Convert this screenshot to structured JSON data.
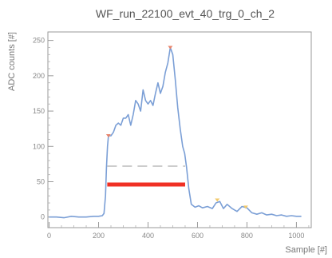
{
  "chart_data": {
    "type": "line",
    "title": "WF_run_22100_evt_40_trg_0_ch_2",
    "xlabel": "Sample [#]",
    "ylabel": "ADC counts [#]",
    "xlim": [
      -5,
      1060
    ],
    "ylim": [
      -15,
      262
    ],
    "xticks": [
      0,
      200,
      400,
      600,
      800,
      1000
    ],
    "yticks": [
      0,
      50,
      100,
      150,
      200,
      250
    ],
    "grid": false,
    "series": [
      {
        "color": "#7b9fd6",
        "x": [
          0,
          30,
          60,
          90,
          120,
          150,
          180,
          200,
          215,
          222,
          228,
          232,
          236,
          240,
          250,
          260,
          270,
          280,
          290,
          300,
          310,
          320,
          330,
          340,
          350,
          360,
          370,
          380,
          390,
          400,
          410,
          420,
          430,
          440,
          450,
          460,
          470,
          480,
          490,
          500,
          510,
          520,
          530,
          540,
          548,
          556,
          565,
          575,
          590,
          605,
          620,
          640,
          660,
          675,
          690,
          705,
          720,
          740,
          760,
          780,
          800,
          820,
          840,
          860,
          880,
          900,
          920,
          940,
          960,
          980,
          1000,
          1020
        ],
        "y": [
          0,
          0,
          -1,
          1,
          0,
          0,
          1,
          1,
          2,
          5,
          30,
          70,
          100,
          115,
          115,
          120,
          130,
          133,
          130,
          140,
          140,
          145,
          130,
          145,
          165,
          160,
          150,
          180,
          165,
          160,
          165,
          158,
          175,
          190,
          175,
          185,
          205,
          218,
          240,
          230,
          195,
          155,
          125,
          100,
          90,
          70,
          40,
          18,
          14,
          16,
          13,
          15,
          12,
          20,
          22,
          12,
          18,
          12,
          8,
          15,
          13,
          6,
          4,
          6,
          3,
          4,
          2,
          3,
          1,
          2,
          1,
          1
        ]
      }
    ],
    "markers": [
      {
        "x": 240,
        "y": 115,
        "color": "#e8836a"
      },
      {
        "x": 490,
        "y": 240,
        "color": "#e8836a"
      },
      {
        "x": 680,
        "y": 24,
        "color": "#f2c96b"
      },
      {
        "x": 795,
        "y": 14,
        "color": "#f2c96b"
      }
    ],
    "hlines": [
      {
        "x_start": 235,
        "x_end": 550,
        "y": 72,
        "color": "#cccccc",
        "style": "dashed"
      },
      {
        "x_start": 235,
        "x_end": 550,
        "y": 46,
        "color": "#f03024",
        "style": "solid"
      }
    ]
  }
}
